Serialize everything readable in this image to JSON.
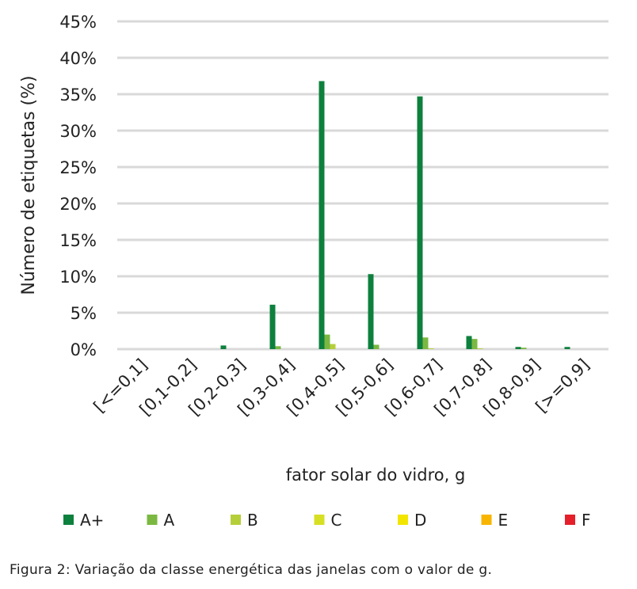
{
  "chart_data": {
    "type": "bar",
    "title": "",
    "xlabel": "fator solar do vidro, g",
    "ylabel": "Número de etiquetas (%)",
    "ylim": [
      0,
      45
    ],
    "yticks": [
      "0%",
      "5%",
      "10%",
      "15%",
      "20%",
      "25%",
      "30%",
      "35%",
      "40%",
      "45%"
    ],
    "grid": true,
    "legend_position": "bottom",
    "categories": [
      "[<=0,1]",
      "[0,1-0,2]",
      "[0,2-0,3]",
      "[0,3-0,4]",
      "[0,4-0,5]",
      "[0,5-0,6]",
      "[0,6-0,7]",
      "[0,7-0,8]",
      "[0,8-0,9]",
      "[>=0,9]"
    ],
    "series": [
      {
        "name": "A+",
        "color": "#0e803d",
        "values": [
          0,
          0,
          0.5,
          6.1,
          36.8,
          10.3,
          34.7,
          1.8,
          0.3,
          0.3
        ]
      },
      {
        "name": "A",
        "color": "#7bb842",
        "values": [
          0,
          0,
          0,
          0.4,
          2.0,
          0.6,
          1.6,
          1.4,
          0.2,
          0
        ]
      },
      {
        "name": "B",
        "color": "#b5cf3a",
        "values": [
          0,
          0,
          0,
          0,
          0.7,
          0,
          0.1,
          0.1,
          0,
          0
        ]
      },
      {
        "name": "C",
        "color": "#d7df23",
        "values": [
          0,
          0,
          0,
          0,
          0,
          0,
          0,
          0,
          0,
          0
        ]
      },
      {
        "name": "D",
        "color": "#f2e600",
        "values": [
          0,
          0,
          0,
          0,
          0,
          0,
          0,
          0,
          0,
          0
        ]
      },
      {
        "name": "E",
        "color": "#f7b500",
        "values": [
          0,
          0,
          0,
          0,
          0,
          0,
          0,
          0,
          0,
          0
        ]
      },
      {
        "name": "F",
        "color": "#e5202a",
        "values": [
          0,
          0,
          0,
          0,
          0,
          0,
          0,
          0,
          0,
          0
        ]
      }
    ]
  },
  "caption": "Figura 2: Variação da classe energética das janelas com o valor de g."
}
